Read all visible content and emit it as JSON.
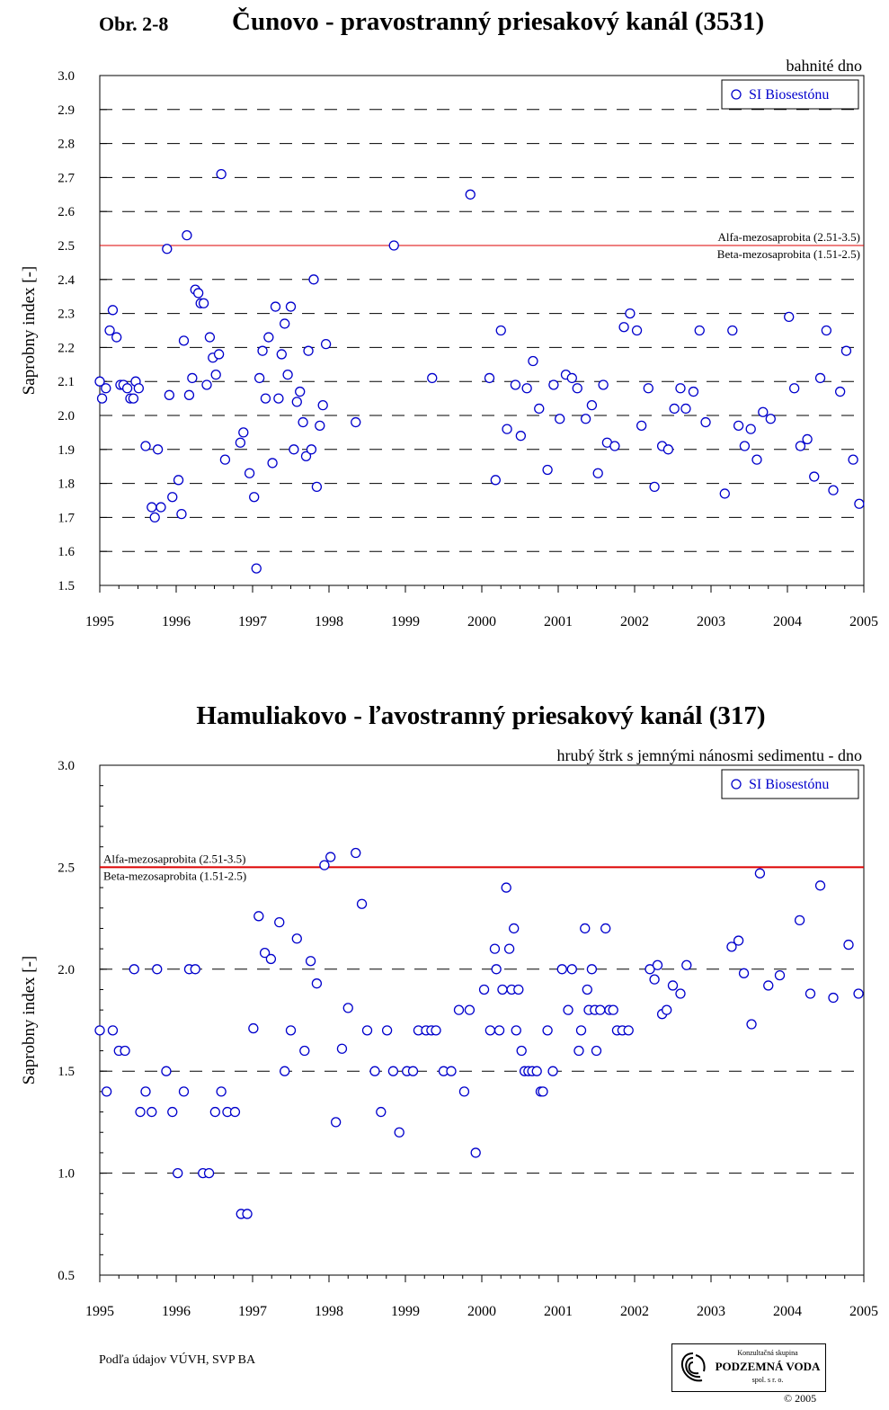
{
  "page": {
    "figure_label": "Obr. 2-8",
    "footer_note": "Podľa údajov VÚVH, SVP BA",
    "logo": {
      "top": "Konzultačná skupina",
      "main": "PODZEMNÁ VODA",
      "sub": "spol. s r. o."
    },
    "copyright": "© 2005"
  },
  "colors": {
    "marker": "#0000cc",
    "threshold": "#dd0000",
    "grid": "#000000"
  },
  "chart_data": [
    {
      "type": "scatter",
      "title": "Čunovo - pravostranný priesakový kanál (3531)",
      "subtitle": "bahnité dno",
      "ylabel": "Saprobny index  [-]",
      "xlabel": "",
      "xlim": [
        1995,
        2005
      ],
      "ylim": [
        1.5,
        3.0
      ],
      "xticks": [
        "1995",
        "1996",
        "1997",
        "1998",
        "1999",
        "2000",
        "2001",
        "2002",
        "2003",
        "2004",
        "2005"
      ],
      "yticks": [
        "1.5",
        "1.6",
        "1.7",
        "1.8",
        "1.9",
        "2.0",
        "2.1",
        "2.2",
        "2.3",
        "2.4",
        "2.5",
        "2.6",
        "2.7",
        "2.8",
        "2.9",
        "3.0"
      ],
      "grid": "horizontal dashed",
      "legend": "top-right",
      "threshold": {
        "value": 2.5,
        "label_above": "Alfa-mezosaprobita (2.51-3.5)",
        "label_below": "Beta-mezosaprobita (1.51-2.5)",
        "label_align": "right"
      },
      "series": [
        {
          "name": "SI Biosestónu",
          "points": [
            [
              1995.0,
              2.1
            ],
            [
              1995.03,
              2.05
            ],
            [
              1995.08,
              2.08
            ],
            [
              1995.13,
              2.25
            ],
            [
              1995.17,
              2.31
            ],
            [
              1995.22,
              2.23
            ],
            [
              1995.27,
              2.09
            ],
            [
              1995.31,
              2.09
            ],
            [
              1995.36,
              2.08
            ],
            [
              1995.4,
              2.05
            ],
            [
              1995.44,
              2.05
            ],
            [
              1995.47,
              2.1
            ],
            [
              1995.51,
              2.08
            ],
            [
              1995.6,
              1.91
            ],
            [
              1995.68,
              1.73
            ],
            [
              1995.72,
              1.7
            ],
            [
              1995.76,
              1.9
            ],
            [
              1995.8,
              1.73
            ],
            [
              1995.88,
              2.49
            ],
            [
              1995.91,
              2.06
            ],
            [
              1995.95,
              1.76
            ],
            [
              1996.03,
              1.81
            ],
            [
              1996.07,
              1.71
            ],
            [
              1996.1,
              2.22
            ],
            [
              1996.14,
              2.53
            ],
            [
              1996.17,
              2.06
            ],
            [
              1996.21,
              2.11
            ],
            [
              1996.25,
              2.37
            ],
            [
              1996.29,
              2.36
            ],
            [
              1996.32,
              2.33
            ],
            [
              1996.36,
              2.33
            ],
            [
              1996.4,
              2.09
            ],
            [
              1996.44,
              2.23
            ],
            [
              1996.48,
              2.17
            ],
            [
              1996.52,
              2.12
            ],
            [
              1996.56,
              2.18
            ],
            [
              1996.59,
              2.71
            ],
            [
              1996.64,
              1.87
            ],
            [
              1996.84,
              1.92
            ],
            [
              1996.88,
              1.95
            ],
            [
              1996.96,
              1.83
            ],
            [
              1997.02,
              1.76
            ],
            [
              1997.05,
              1.55
            ],
            [
              1997.09,
              2.11
            ],
            [
              1997.13,
              2.19
            ],
            [
              1997.17,
              2.05
            ],
            [
              1997.21,
              2.23
            ],
            [
              1997.26,
              1.86
            ],
            [
              1997.3,
              2.32
            ],
            [
              1997.34,
              2.05
            ],
            [
              1997.38,
              2.18
            ],
            [
              1997.42,
              2.27
            ],
            [
              1997.46,
              2.12
            ],
            [
              1997.5,
              2.32
            ],
            [
              1997.54,
              1.9
            ],
            [
              1997.58,
              2.04
            ],
            [
              1997.62,
              2.07
            ],
            [
              1997.66,
              1.98
            ],
            [
              1997.7,
              1.88
            ],
            [
              1997.73,
              2.19
            ],
            [
              1997.77,
              1.9
            ],
            [
              1997.8,
              2.4
            ],
            [
              1997.84,
              1.79
            ],
            [
              1997.88,
              1.97
            ],
            [
              1997.92,
              2.03
            ],
            [
              1997.96,
              2.21
            ],
            [
              1998.35,
              1.98
            ],
            [
              1998.85,
              2.5
            ],
            [
              1999.35,
              2.11
            ],
            [
              1999.85,
              2.65
            ],
            [
              2000.1,
              2.11
            ],
            [
              2000.18,
              1.81
            ],
            [
              2000.25,
              2.25
            ],
            [
              2000.33,
              1.96
            ],
            [
              2000.44,
              2.09
            ],
            [
              2000.51,
              1.94
            ],
            [
              2000.59,
              2.08
            ],
            [
              2000.67,
              2.16
            ],
            [
              2000.75,
              2.02
            ],
            [
              2000.86,
              1.84
            ],
            [
              2000.94,
              2.09
            ],
            [
              2001.02,
              1.99
            ],
            [
              2001.1,
              2.12
            ],
            [
              2001.18,
              2.11
            ],
            [
              2001.25,
              2.08
            ],
            [
              2001.36,
              1.99
            ],
            [
              2001.44,
              2.03
            ],
            [
              2001.52,
              1.83
            ],
            [
              2001.59,
              2.09
            ],
            [
              2001.64,
              1.92
            ],
            [
              2001.74,
              1.91
            ],
            [
              2001.86,
              2.26
            ],
            [
              2001.94,
              2.3
            ],
            [
              2002.03,
              2.25
            ],
            [
              2002.09,
              1.97
            ],
            [
              2002.18,
              2.08
            ],
            [
              2002.26,
              1.79
            ],
            [
              2002.36,
              1.91
            ],
            [
              2002.44,
              1.9
            ],
            [
              2002.52,
              2.02
            ],
            [
              2002.6,
              2.08
            ],
            [
              2002.67,
              2.02
            ],
            [
              2002.77,
              2.07
            ],
            [
              2002.85,
              2.25
            ],
            [
              2002.93,
              1.98
            ],
            [
              2003.18,
              1.77
            ],
            [
              2003.28,
              2.25
            ],
            [
              2003.36,
              1.97
            ],
            [
              2003.44,
              1.91
            ],
            [
              2003.52,
              1.96
            ],
            [
              2003.6,
              1.87
            ],
            [
              2003.68,
              2.01
            ],
            [
              2003.78,
              1.99
            ],
            [
              2004.02,
              2.29
            ],
            [
              2004.09,
              2.08
            ],
            [
              2004.17,
              1.91
            ],
            [
              2004.26,
              1.93
            ],
            [
              2004.35,
              1.82
            ],
            [
              2004.43,
              2.11
            ],
            [
              2004.51,
              2.25
            ],
            [
              2004.6,
              1.78
            ],
            [
              2004.69,
              2.07
            ],
            [
              2004.77,
              2.19
            ],
            [
              2004.86,
              1.87
            ],
            [
              2004.94,
              1.74
            ]
          ]
        }
      ]
    },
    {
      "type": "scatter",
      "title": "Hamuliakovo - ľavostranný priesakový kanál (317)",
      "subtitle": "hrubý štrk s jemnými nánosmi sedimentu - dno",
      "ylabel": "Saprobny index  [-]",
      "xlabel": "",
      "xlim": [
        1995,
        2005
      ],
      "ylim": [
        0.5,
        3.0
      ],
      "xticks": [
        "1995",
        "1996",
        "1997",
        "1998",
        "1999",
        "2000",
        "2001",
        "2002",
        "2003",
        "2004",
        "2005"
      ],
      "yticks": [
        "0.5",
        "1.0",
        "1.5",
        "2.0",
        "2.5",
        "3.0"
      ],
      "grid": "horizontal dashed",
      "legend": "top-right",
      "threshold": {
        "value": 2.5,
        "label_above": "Alfa-mezosaprobita (2.51-3.5)",
        "label_below": "Beta-mezosaprobita (1.51-2.5)",
        "label_align": "left"
      },
      "series": [
        {
          "name": "SI Biosestónu",
          "points": [
            [
              1995.0,
              1.7
            ],
            [
              1995.09,
              1.4
            ],
            [
              1995.17,
              1.7
            ],
            [
              1995.25,
              1.6
            ],
            [
              1995.33,
              1.6
            ],
            [
              1995.45,
              2.0
            ],
            [
              1995.53,
              1.3
            ],
            [
              1995.6,
              1.4
            ],
            [
              1995.68,
              1.3
            ],
            [
              1995.75,
              2.0
            ],
            [
              1995.87,
              1.5
            ],
            [
              1995.95,
              1.3
            ],
            [
              1996.02,
              1.0
            ],
            [
              1996.1,
              1.4
            ],
            [
              1996.17,
              2.0
            ],
            [
              1996.25,
              2.0
            ],
            [
              1996.35,
              1.0
            ],
            [
              1996.43,
              1.0
            ],
            [
              1996.51,
              1.3
            ],
            [
              1996.59,
              1.4
            ],
            [
              1996.67,
              1.3
            ],
            [
              1996.77,
              1.3
            ],
            [
              1996.85,
              0.8
            ],
            [
              1996.93,
              0.8
            ],
            [
              1997.01,
              1.71
            ],
            [
              1997.08,
              2.26
            ],
            [
              1997.16,
              2.08
            ],
            [
              1997.24,
              2.05
            ],
            [
              1997.35,
              2.23
            ],
            [
              1997.42,
              1.5
            ],
            [
              1997.5,
              1.7
            ],
            [
              1997.58,
              2.15
            ],
            [
              1997.68,
              1.6
            ],
            [
              1997.76,
              2.04
            ],
            [
              1997.84,
              1.93
            ],
            [
              1997.94,
              2.51
            ],
            [
              1998.02,
              2.55
            ],
            [
              1998.09,
              1.25
            ],
            [
              1998.17,
              1.61
            ],
            [
              1998.25,
              1.81
            ],
            [
              1998.35,
              2.57
            ],
            [
              1998.43,
              2.32
            ],
            [
              1998.5,
              1.7
            ],
            [
              1998.6,
              1.5
            ],
            [
              1998.68,
              1.3
            ],
            [
              1998.76,
              1.7
            ],
            [
              1998.84,
              1.5
            ],
            [
              1998.92,
              1.2
            ],
            [
              1999.02,
              1.5
            ],
            [
              1999.1,
              1.5
            ],
            [
              1999.17,
              1.7
            ],
            [
              1999.27,
              1.7
            ],
            [
              1999.34,
              1.7
            ],
            [
              1999.4,
              1.7
            ],
            [
              1999.5,
              1.5
            ],
            [
              1999.6,
              1.5
            ],
            [
              1999.7,
              1.8
            ],
            [
              1999.77,
              1.4
            ],
            [
              1999.84,
              1.8
            ],
            [
              1999.92,
              1.1
            ],
            [
              2000.03,
              1.9
            ],
            [
              2000.11,
              1.7
            ],
            [
              2000.17,
              2.1
            ],
            [
              2000.19,
              2.0
            ],
            [
              2000.23,
              1.7
            ],
            [
              2000.27,
              1.9
            ],
            [
              2000.32,
              2.4
            ],
            [
              2000.36,
              2.1
            ],
            [
              2000.39,
              1.9
            ],
            [
              2000.42,
              2.2
            ],
            [
              2000.45,
              1.7
            ],
            [
              2000.48,
              1.9
            ],
            [
              2000.52,
              1.6
            ],
            [
              2000.56,
              1.5
            ],
            [
              2000.61,
              1.5
            ],
            [
              2000.66,
              1.5
            ],
            [
              2000.72,
              1.5
            ],
            [
              2000.77,
              1.4
            ],
            [
              2000.8,
              1.4
            ],
            [
              2000.86,
              1.7
            ],
            [
              2000.93,
              1.5
            ],
            [
              2001.05,
              2.0
            ],
            [
              2001.13,
              1.8
            ],
            [
              2001.18,
              2.0
            ],
            [
              2001.27,
              1.6
            ],
            [
              2001.3,
              1.7
            ],
            [
              2001.35,
              2.2
            ],
            [
              2001.38,
              1.9
            ],
            [
              2001.4,
              1.8
            ],
            [
              2001.44,
              2.0
            ],
            [
              2001.48,
              1.8
            ],
            [
              2001.5,
              1.6
            ],
            [
              2001.55,
              1.8
            ],
            [
              2001.62,
              2.2
            ],
            [
              2001.67,
              1.8
            ],
            [
              2001.72,
              1.8
            ],
            [
              2001.77,
              1.7
            ],
            [
              2001.84,
              1.7
            ],
            [
              2001.92,
              1.7
            ],
            [
              2002.2,
              2.0
            ],
            [
              2002.26,
              1.95
            ],
            [
              2002.3,
              2.02
            ],
            [
              2002.36,
              1.78
            ],
            [
              2002.42,
              1.8
            ],
            [
              2002.5,
              1.92
            ],
            [
              2002.6,
              1.88
            ],
            [
              2002.68,
              2.02
            ],
            [
              2003.27,
              2.11
            ],
            [
              2003.36,
              2.14
            ],
            [
              2003.43,
              1.98
            ],
            [
              2003.53,
              1.73
            ],
            [
              2003.64,
              2.47
            ],
            [
              2003.75,
              1.92
            ],
            [
              2003.9,
              1.97
            ],
            [
              2004.16,
              2.24
            ],
            [
              2004.3,
              1.88
            ],
            [
              2004.43,
              2.41
            ],
            [
              2004.6,
              1.86
            ],
            [
              2004.8,
              2.12
            ],
            [
              2004.93,
              1.88
            ]
          ]
        }
      ]
    }
  ]
}
